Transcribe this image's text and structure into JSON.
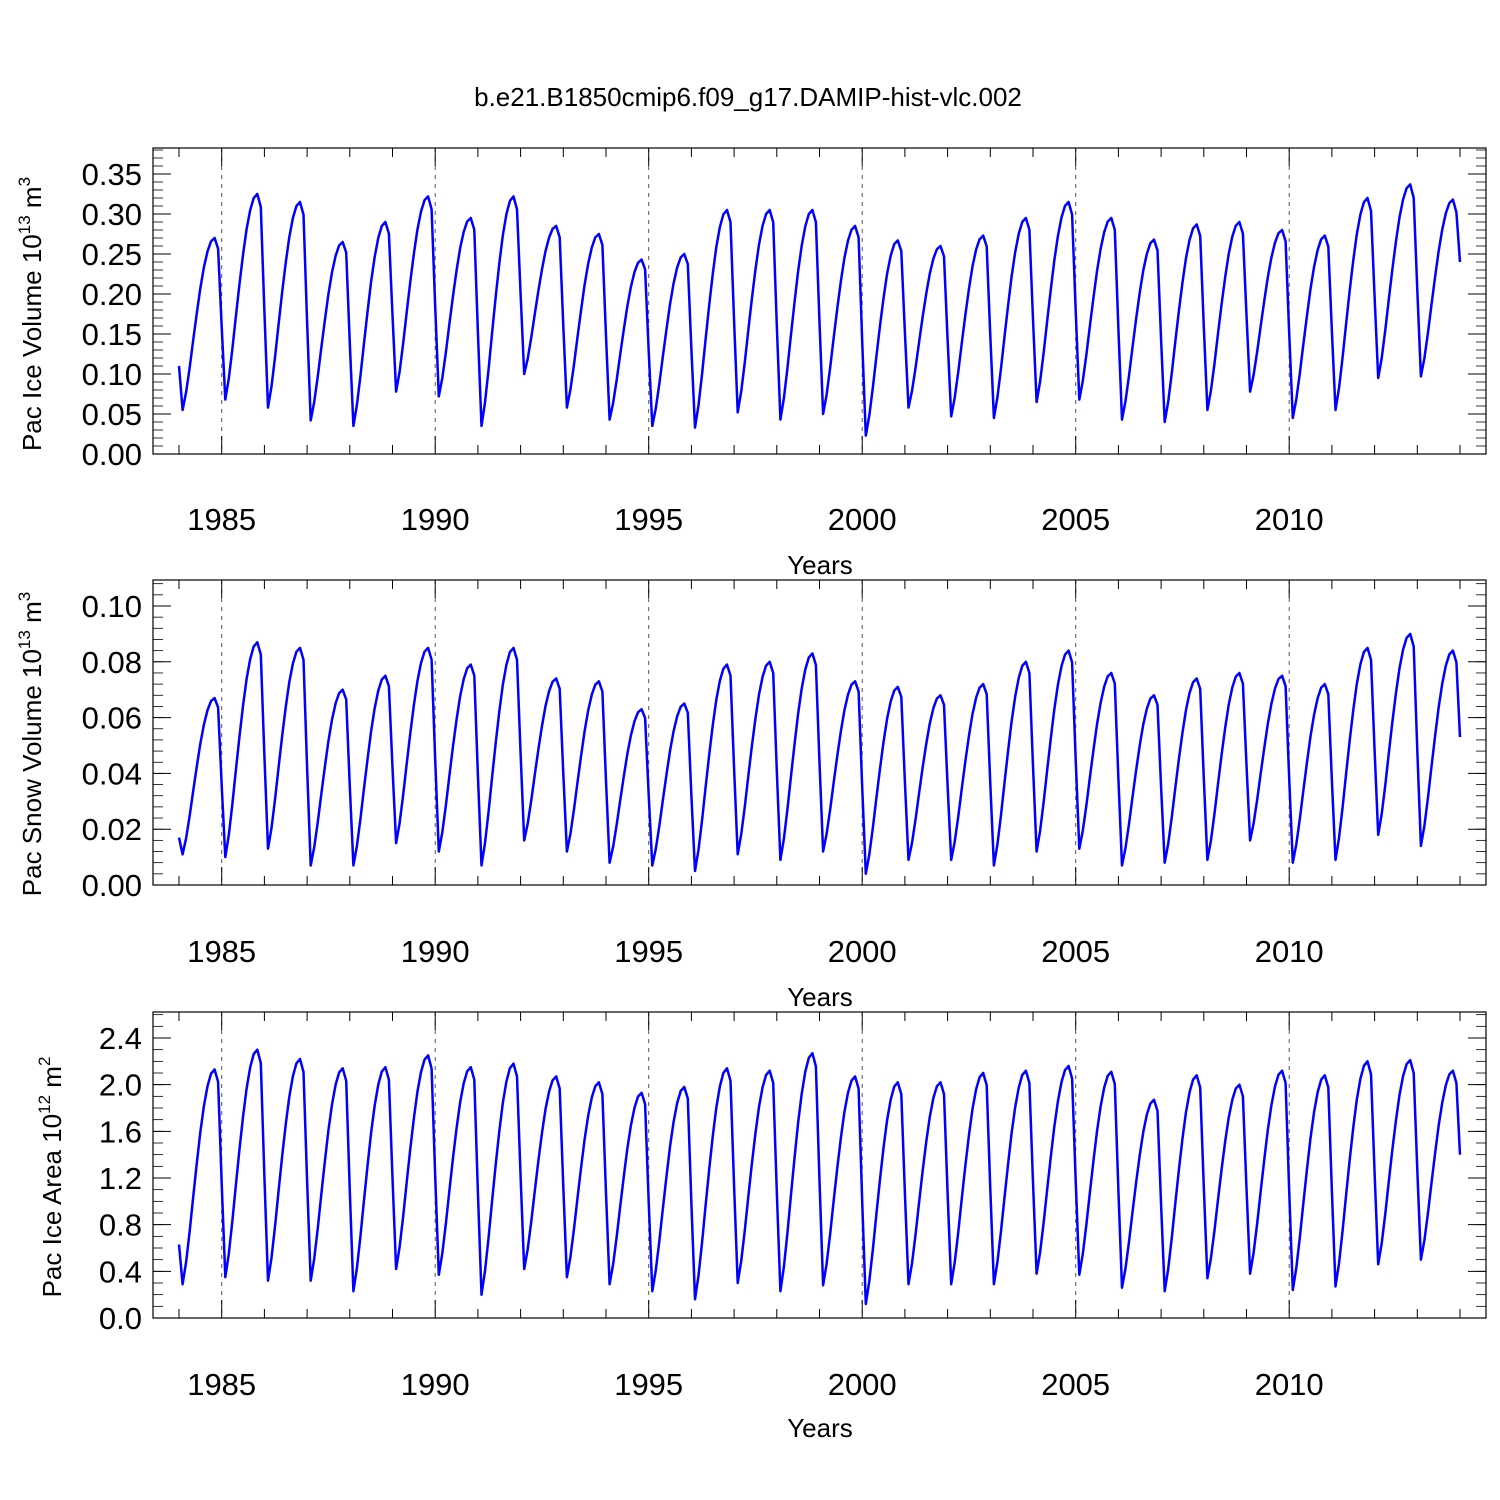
{
  "figure_title": "b.e21.B1850cmip6.f09_g17.DAMIP-hist-vlc.002",
  "chart_data": [
    {
      "type": "line",
      "title": "",
      "xlabel": "Years",
      "ylabel_parts": [
        "Pac Ice Volume 10",
        "13",
        " m",
        "3"
      ],
      "xlim": [
        1984,
        2014
      ],
      "ylim": [
        0,
        0.35
      ],
      "x_ticks": [
        1985,
        1990,
        1995,
        2000,
        2005,
        2010
      ],
      "y_ticks": [
        "0.00",
        "0.05",
        "0.10",
        "0.15",
        "0.20",
        "0.25",
        "0.30",
        "0.35"
      ],
      "y_tick_values": [
        0,
        0.05,
        0.1,
        0.15,
        0.2,
        0.25,
        0.3,
        0.35
      ],
      "vertical_dashed_gridlines_at": [
        1985,
        1990,
        1995,
        2000,
        2005,
        2010
      ],
      "line_color": "#0000ff",
      "x_start": 1984.0,
      "x_step_months": 1,
      "annual_peaks": [
        0.27,
        0.325,
        0.315,
        0.265,
        0.29,
        0.322,
        0.295,
        0.322,
        0.285,
        0.275,
        0.243,
        0.25,
        0.305,
        0.305,
        0.305,
        0.285,
        0.267,
        0.26,
        0.273,
        0.295,
        0.315,
        0.295,
        0.268,
        0.287,
        0.29,
        0.28,
        0.273,
        0.32,
        0.337,
        0.318
      ],
      "annual_minima": [
        0.055,
        0.068,
        0.058,
        0.042,
        0.035,
        0.078,
        0.072,
        0.035,
        0.1,
        0.058,
        0.043,
        0.035,
        0.033,
        0.052,
        0.043,
        0.05,
        0.023,
        0.058,
        0.047,
        0.045,
        0.065,
        0.068,
        0.043,
        0.04,
        0.055,
        0.078,
        0.045,
        0.055,
        0.095,
        0.097
      ],
      "first_value": 0.11,
      "last_value": 0.24
    },
    {
      "type": "line",
      "title": "",
      "xlabel": "Years",
      "ylabel_parts": [
        "Pac Snow Volume 10",
        "13",
        " m",
        "3"
      ],
      "xlim": [
        1984,
        2014
      ],
      "ylim": [
        0,
        0.1
      ],
      "x_ticks": [
        1985,
        1990,
        1995,
        2000,
        2005,
        2010
      ],
      "y_ticks": [
        "0.00",
        "0.02",
        "0.04",
        "0.06",
        "0.08",
        "0.10"
      ],
      "y_tick_values": [
        0,
        0.02,
        0.04,
        0.06,
        0.08,
        0.1
      ],
      "vertical_dashed_gridlines_at": [
        1985,
        1990,
        1995,
        2000,
        2005,
        2010
      ],
      "line_color": "#0000ff",
      "x_start": 1984.0,
      "x_step_months": 1,
      "annual_peaks": [
        0.067,
        0.087,
        0.085,
        0.07,
        0.075,
        0.085,
        0.079,
        0.085,
        0.074,
        0.073,
        0.063,
        0.065,
        0.079,
        0.08,
        0.083,
        0.073,
        0.071,
        0.068,
        0.072,
        0.08,
        0.084,
        0.076,
        0.068,
        0.074,
        0.076,
        0.075,
        0.072,
        0.085,
        0.09,
        0.084
      ],
      "annual_minima": [
        0.011,
        0.01,
        0.013,
        0.007,
        0.007,
        0.015,
        0.012,
        0.007,
        0.016,
        0.012,
        0.008,
        0.007,
        0.005,
        0.011,
        0.009,
        0.012,
        0.004,
        0.009,
        0.009,
        0.007,
        0.012,
        0.013,
        0.007,
        0.008,
        0.009,
        0.016,
        0.008,
        0.009,
        0.018,
        0.014
      ],
      "first_value": 0.017,
      "last_value": 0.053
    },
    {
      "type": "line",
      "title": "",
      "xlabel": "Years",
      "ylabel_parts": [
        "Pac Ice Area 10",
        "12",
        " m",
        "2"
      ],
      "xlim": [
        1984,
        2014
      ],
      "ylim": [
        0,
        2.4
      ],
      "x_ticks": [
        1985,
        1990,
        1995,
        2000,
        2005,
        2010
      ],
      "y_ticks": [
        "0.0",
        "0.4",
        "0.8",
        "1.2",
        "1.6",
        "2.0",
        "2.4"
      ],
      "y_tick_values": [
        0,
        0.4,
        0.8,
        1.2,
        1.6,
        2.0,
        2.4
      ],
      "vertical_dashed_gridlines_at": [
        1985,
        1990,
        1995,
        2000,
        2005,
        2010
      ],
      "line_color": "#0000ff",
      "x_start": 1984.0,
      "x_step_months": 1,
      "annual_peaks": [
        2.13,
        2.3,
        2.22,
        2.14,
        2.15,
        2.25,
        2.15,
        2.18,
        2.07,
        2.02,
        1.93,
        1.98,
        2.14,
        2.12,
        2.27,
        2.07,
        2.02,
        2.02,
        2.1,
        2.12,
        2.16,
        2.11,
        1.87,
        2.08,
        2.0,
        2.12,
        2.08,
        2.2,
        2.21,
        2.12
      ],
      "annual_minima": [
        0.29,
        0.35,
        0.32,
        0.32,
        0.23,
        0.42,
        0.37,
        0.2,
        0.42,
        0.35,
        0.29,
        0.23,
        0.16,
        0.3,
        0.23,
        0.28,
        0.12,
        0.29,
        0.29,
        0.29,
        0.38,
        0.37,
        0.26,
        0.23,
        0.34,
        0.38,
        0.24,
        0.27,
        0.46,
        0.5
      ],
      "first_value": 0.63,
      "last_value": 1.4
    }
  ]
}
